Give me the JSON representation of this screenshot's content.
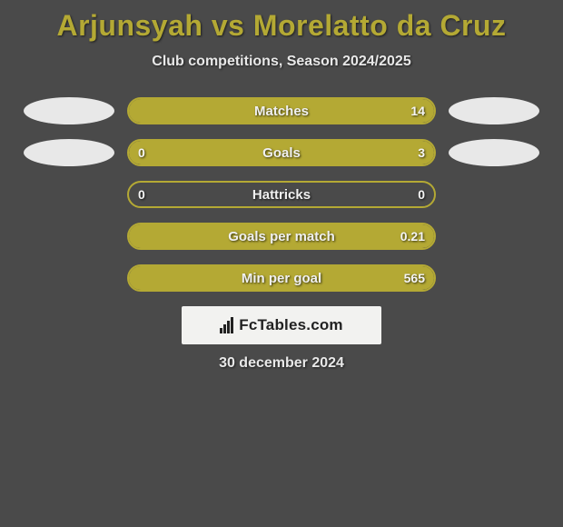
{
  "title": "Arjunsyah vs Morelatto da Cruz",
  "subtitle": "Club competitions, Season 2024/2025",
  "date": "30 december 2024",
  "logo": {
    "text": "FcTables.com"
  },
  "colors": {
    "accent": "#b4a934",
    "background": "#4a4a4a",
    "oval": "#e8e8e8",
    "text": "#f0f0f0",
    "logo_bg": "#f2f2f0",
    "logo_text": "#222222"
  },
  "rows": [
    {
      "label": "Matches",
      "left_value": "",
      "right_value": "14",
      "left_pct": 0,
      "right_pct": 100,
      "show_left_oval": true,
      "show_right_oval": true
    },
    {
      "label": "Goals",
      "left_value": "0",
      "right_value": "3",
      "left_pct": 18,
      "right_pct": 82,
      "show_left_oval": true,
      "show_right_oval": true
    },
    {
      "label": "Hattricks",
      "left_value": "0",
      "right_value": "0",
      "left_pct": 0,
      "right_pct": 0,
      "show_left_oval": false,
      "show_right_oval": false
    },
    {
      "label": "Goals per match",
      "left_value": "",
      "right_value": "0.21",
      "left_pct": 0,
      "right_pct": 100,
      "show_left_oval": false,
      "show_right_oval": false
    },
    {
      "label": "Min per goal",
      "left_value": "",
      "right_value": "565",
      "left_pct": 0,
      "right_pct": 100,
      "show_left_oval": false,
      "show_right_oval": false
    }
  ]
}
